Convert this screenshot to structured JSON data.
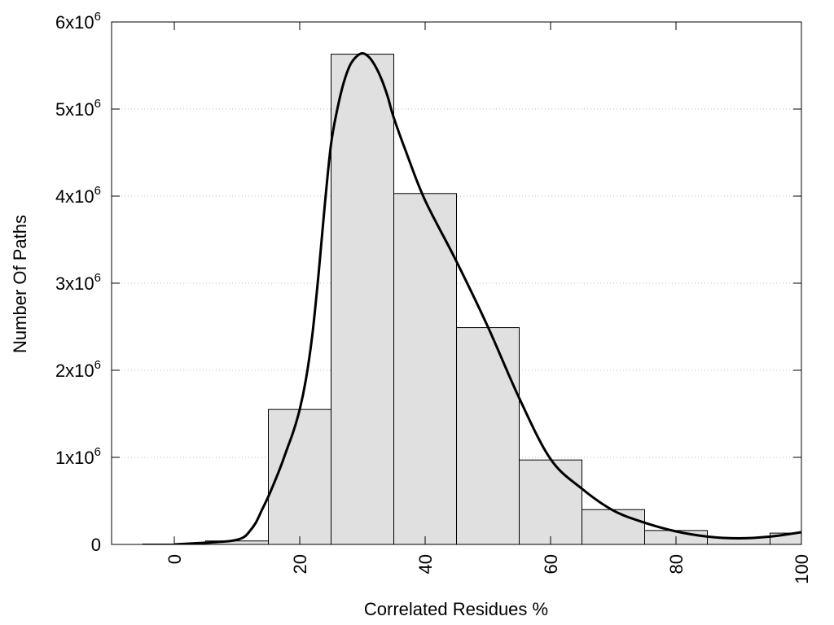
{
  "chart_data": {
    "type": "bar",
    "xlabel": "Correlated Residues %",
    "ylabel": "Number Of Paths",
    "xlim": [
      -10,
      100
    ],
    "ylim": [
      0,
      6000000
    ],
    "x_ticks": [
      {
        "value": 0,
        "label": "0"
      },
      {
        "value": 20,
        "label": "20"
      },
      {
        "value": 40,
        "label": "40"
      },
      {
        "value": 60,
        "label": "60"
      },
      {
        "value": 80,
        "label": "80"
      },
      {
        "value": 100,
        "label": "100"
      }
    ],
    "y_ticks": [
      {
        "value": 0,
        "label": "0",
        "exp": ""
      },
      {
        "value": 1000000,
        "label": "1x10",
        "exp": "6"
      },
      {
        "value": 2000000,
        "label": "2x10",
        "exp": "6"
      },
      {
        "value": 3000000,
        "label": "3x10",
        "exp": "6"
      },
      {
        "value": 4000000,
        "label": "4x10",
        "exp": "6"
      },
      {
        "value": 5000000,
        "label": "5x10",
        "exp": "6"
      },
      {
        "value": 6000000,
        "label": "6x10",
        "exp": "6"
      }
    ],
    "grid": "horizontal dotted",
    "bars": [
      {
        "x0": -5,
        "x1": 5,
        "value": 5000
      },
      {
        "x0": 5,
        "x1": 15,
        "value": 40000
      },
      {
        "x0": 15,
        "x1": 25,
        "value": 1550000
      },
      {
        "x0": 25,
        "x1": 35,
        "value": 5630000
      },
      {
        "x0": 35,
        "x1": 45,
        "value": 4030000
      },
      {
        "x0": 45,
        "x1": 55,
        "value": 2490000
      },
      {
        "x0": 55,
        "x1": 65,
        "value": 970000
      },
      {
        "x0": 65,
        "x1": 75,
        "value": 400000
      },
      {
        "x0": 75,
        "x1": 85,
        "value": 160000
      },
      {
        "x0": 85,
        "x1": 95,
        "value": 80000
      },
      {
        "x0": 95,
        "x1": 105,
        "value": 130000
      }
    ],
    "curve": {
      "x": [
        0,
        5,
        9,
        11,
        12,
        13,
        14,
        15,
        16,
        17,
        18,
        19,
        20,
        21,
        22,
        23,
        24,
        25,
        26,
        27,
        28,
        29,
        30,
        31,
        32,
        33,
        34,
        35,
        37,
        40,
        45,
        50,
        55,
        60,
        65,
        70,
        75,
        80,
        85,
        90,
        95,
        100
      ],
      "y": [
        0,
        20000,
        40000,
        80000,
        150000,
        250000,
        400000,
        550000,
        720000,
        900000,
        1100000,
        1300000,
        1550000,
        1900000,
        2400000,
        3100000,
        3900000,
        4600000,
        5000000,
        5300000,
        5500000,
        5600000,
        5640000,
        5600000,
        5500000,
        5350000,
        5150000,
        4900000,
        4500000,
        3950000,
        3250000,
        2500000,
        1680000,
        980000,
        640000,
        390000,
        250000,
        150000,
        90000,
        70000,
        90000,
        140000
      ]
    }
  }
}
